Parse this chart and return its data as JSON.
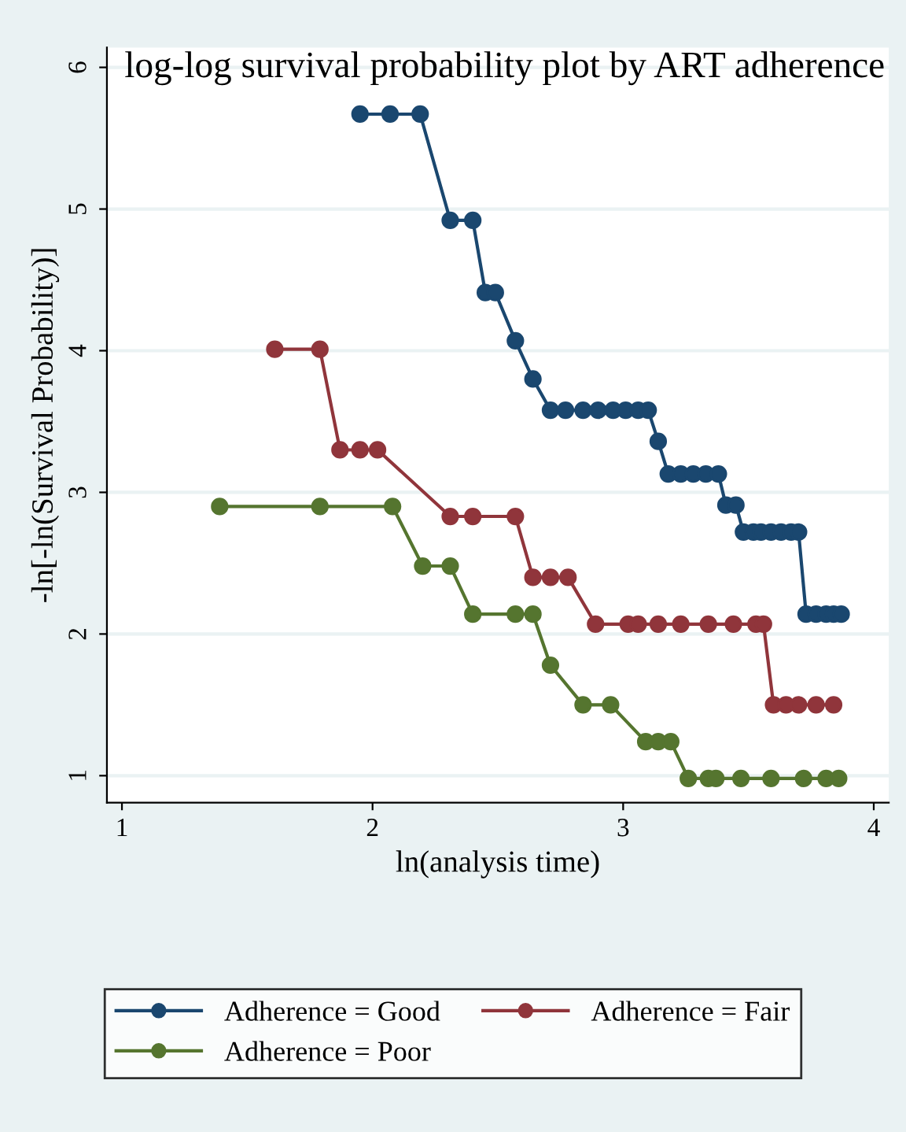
{
  "chart_data": {
    "type": "line",
    "title": "log-log survival probability plot by ART adherence",
    "xlabel": "ln(analysis time)",
    "ylabel": "-ln[-ln(Survival Probability)]",
    "xlim": [
      0.94,
      4.06
    ],
    "ylim": [
      0.81,
      6.14
    ],
    "xticks": [
      1,
      2,
      3,
      4
    ],
    "yticks": [
      1,
      2,
      3,
      4,
      5,
      6
    ],
    "grid": "y",
    "legend": "bottom",
    "marker": "circle",
    "line_style": "solid",
    "series": [
      {
        "name": "Adherence = Good",
        "color": "#1a476f",
        "x": [
          1.95,
          2.07,
          2.19,
          2.31,
          2.4,
          2.45,
          2.49,
          2.57,
          2.64,
          2.71,
          2.77,
          2.84,
          2.9,
          2.96,
          3.01,
          3.06,
          3.1,
          3.14,
          3.18,
          3.23,
          3.28,
          3.33,
          3.38,
          3.41,
          3.45,
          3.48,
          3.52,
          3.55,
          3.59,
          3.63,
          3.67,
          3.7,
          3.73,
          3.77,
          3.81,
          3.84,
          3.87
        ],
        "values": [
          5.67,
          5.67,
          5.67,
          4.92,
          4.92,
          4.41,
          4.41,
          4.07,
          3.8,
          3.58,
          3.58,
          3.58,
          3.58,
          3.58,
          3.58,
          3.58,
          3.58,
          3.36,
          3.13,
          3.13,
          3.13,
          3.13,
          3.13,
          2.91,
          2.91,
          2.72,
          2.72,
          2.72,
          2.72,
          2.72,
          2.72,
          2.72,
          2.14,
          2.14,
          2.14,
          2.14,
          2.14
        ]
      },
      {
        "name": "Adherence = Fair",
        "color": "#90353b",
        "x": [
          1.61,
          1.79,
          1.87,
          1.95,
          2.02,
          2.31,
          2.4,
          2.57,
          2.64,
          2.71,
          2.78,
          2.89,
          3.02,
          3.06,
          3.14,
          3.23,
          3.34,
          3.44,
          3.53,
          3.56,
          3.6,
          3.65,
          3.7,
          3.77,
          3.84
        ],
        "values": [
          4.01,
          4.01,
          3.3,
          3.3,
          3.3,
          2.83,
          2.83,
          2.83,
          2.4,
          2.4,
          2.4,
          2.07,
          2.07,
          2.07,
          2.07,
          2.07,
          2.07,
          2.07,
          2.07,
          2.07,
          1.5,
          1.5,
          1.5,
          1.5,
          1.5
        ]
      },
      {
        "name": "Adherence = Poor",
        "color": "#55752f",
        "x": [
          1.39,
          1.79,
          2.08,
          2.2,
          2.31,
          2.4,
          2.57,
          2.64,
          2.71,
          2.84,
          2.95,
          3.09,
          3.14,
          3.19,
          3.26,
          3.34,
          3.37,
          3.47,
          3.59,
          3.72,
          3.81,
          3.86
        ],
        "values": [
          2.9,
          2.9,
          2.9,
          2.48,
          2.48,
          2.14,
          2.14,
          2.14,
          1.78,
          1.5,
          1.5,
          1.24,
          1.24,
          1.24,
          0.98,
          0.98,
          0.98,
          0.98,
          0.98,
          0.98,
          0.98,
          0.98
        ]
      }
    ]
  }
}
